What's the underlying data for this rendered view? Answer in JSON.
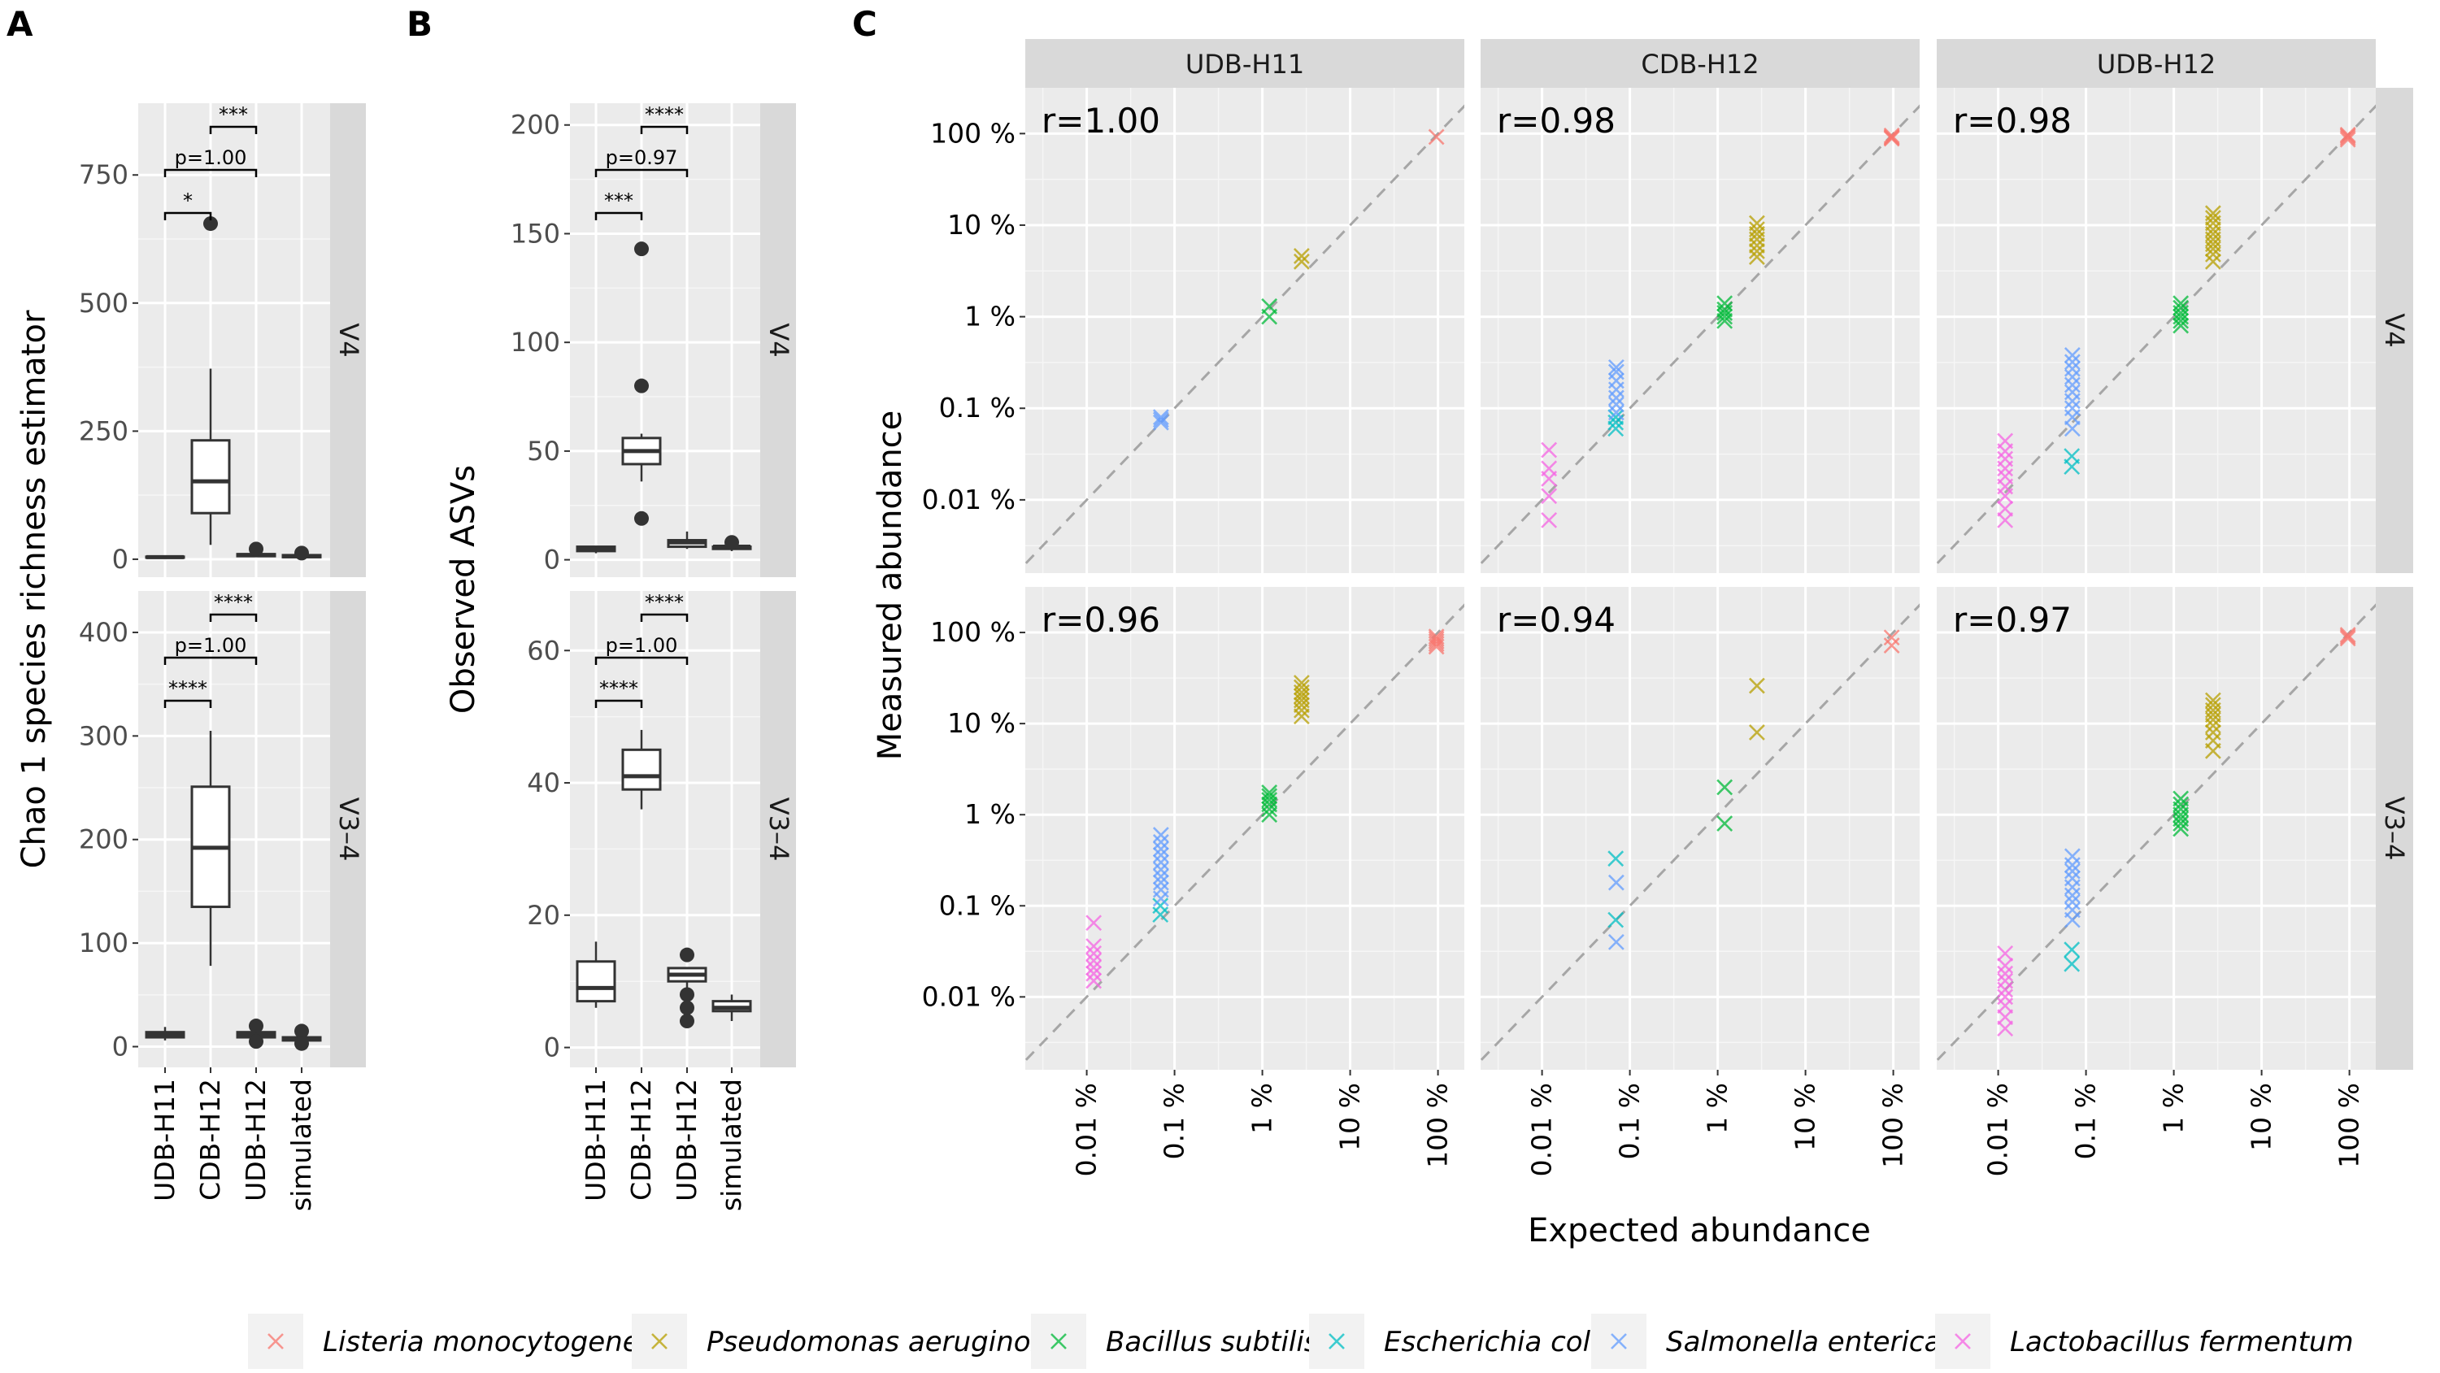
{
  "panel_letters": [
    "A",
    "B",
    "C"
  ],
  "legend": {
    "entries": [
      {
        "label": "Listeria monocytogenes",
        "color": "#F8766D"
      },
      {
        "label": "Pseudomonas aeruginosa",
        "color": "#B79F00"
      },
      {
        "label": "Bacillus subtilis",
        "color": "#00BA38"
      },
      {
        "label": "Escherichia coli",
        "color": "#00BFC4"
      },
      {
        "label": "Salmonella enterica",
        "color": "#619CFF"
      },
      {
        "label": "Lactobacillus fermentum",
        "color": "#F564E3"
      }
    ]
  },
  "chart_data": [
    {
      "id": "A",
      "type": "boxplot",
      "ylabel": "Chao 1 species richness estimator",
      "categories": [
        "UDB-H11",
        "CDB-H12",
        "UDB-H12",
        "simulated"
      ],
      "facets": [
        {
          "label": "V4",
          "ylim": [
            -35,
            890
          ],
          "yticks": [
            0,
            250,
            500,
            750
          ],
          "yticklabels": [
            "0",
            "250",
            "500",
            "750"
          ],
          "boxes": [
            {
              "min": 2,
              "q1": 3,
              "median": 4,
              "q3": 5,
              "max": 6,
              "outliers": []
            },
            {
              "min": 28,
              "q1": 90,
              "median": 152,
              "q3": 232,
              "max": 372,
              "outliers": [
                655
              ]
            },
            {
              "min": 4,
              "q1": 6,
              "median": 8,
              "q3": 10,
              "max": 14,
              "outliers": [
                20
              ]
            },
            {
              "min": 2,
              "q1": 4,
              "median": 6,
              "q3": 8,
              "max": 11,
              "outliers": [
                12
              ]
            }
          ],
          "brackets": [
            {
              "from": 1,
              "to": 2,
              "level": 1,
              "label": "*"
            },
            {
              "from": 1,
              "to": 3,
              "level": 2,
              "label": "p=1.00"
            },
            {
              "from": 2,
              "to": 3,
              "level": 3,
              "label": "***"
            }
          ]
        },
        {
          "label": "V3–4",
          "ylim": [
            -20,
            440
          ],
          "yticks": [
            0,
            100,
            200,
            300,
            400
          ],
          "yticklabels": [
            "0",
            "100",
            "200",
            "300",
            "400"
          ],
          "boxes": [
            {
              "min": 6,
              "q1": 9,
              "median": 11,
              "q3": 14,
              "max": 19,
              "outliers": []
            },
            {
              "min": 78,
              "q1": 135,
              "median": 192,
              "q3": 251,
              "max": 305,
              "outliers": []
            },
            {
              "min": 6,
              "q1": 9,
              "median": 11,
              "q3": 14,
              "max": 18,
              "outliers": [
                20,
                5
              ]
            },
            {
              "min": 4,
              "q1": 6,
              "median": 7,
              "q3": 9,
              "max": 12,
              "outliers": [
                15,
                3
              ]
            }
          ],
          "brackets": [
            {
              "from": 1,
              "to": 2,
              "level": 1,
              "label": "****"
            },
            {
              "from": 1,
              "to": 3,
              "level": 2,
              "label": "p=1.00"
            },
            {
              "from": 2,
              "to": 3,
              "level": 3,
              "label": "****"
            }
          ]
        }
      ]
    },
    {
      "id": "B",
      "type": "boxplot",
      "ylabel": "Observed ASVs",
      "categories": [
        "UDB-H11",
        "CDB-H12",
        "UDB-H12",
        "simulated"
      ],
      "facets": [
        {
          "label": "V4",
          "ylim": [
            -8,
            210
          ],
          "yticks": [
            0,
            50,
            100,
            150,
            200
          ],
          "yticklabels": [
            "0",
            "50",
            "100",
            "150",
            "200"
          ],
          "boxes": [
            {
              "min": 3,
              "q1": 4,
              "median": 5,
              "q3": 6,
              "max": 6,
              "outliers": []
            },
            {
              "min": 36,
              "q1": 44,
              "median": 50,
              "q3": 56,
              "max": 58,
              "outliers": [
                143,
                80,
                19
              ]
            },
            {
              "min": 5,
              "q1": 6,
              "median": 8,
              "q3": 9,
              "max": 13,
              "outliers": []
            },
            {
              "min": 4,
              "q1": 5,
              "median": 6,
              "q3": 6,
              "max": 7,
              "outliers": [
                8
              ]
            }
          ],
          "brackets": [
            {
              "from": 1,
              "to": 2,
              "level": 1,
              "label": "***"
            },
            {
              "from": 1,
              "to": 3,
              "level": 2,
              "label": "p=0.97"
            },
            {
              "from": 2,
              "to": 3,
              "level": 3,
              "label": "****"
            }
          ]
        },
        {
          "label": "V3–4",
          "ylim": [
            -3,
            69
          ],
          "yticks": [
            0,
            20,
            40,
            60
          ],
          "yticklabels": [
            "0",
            "20",
            "40",
            "60"
          ],
          "boxes": [
            {
              "min": 6,
              "q1": 7,
              "median": 9,
              "q3": 13,
              "max": 16,
              "outliers": []
            },
            {
              "min": 36,
              "q1": 39,
              "median": 41,
              "q3": 45,
              "max": 48,
              "outliers": []
            },
            {
              "min": 8,
              "q1": 10,
              "median": 11,
              "q3": 12,
              "max": 12,
              "outliers": [
                14,
                8,
                6,
                4
              ]
            },
            {
              "min": 4,
              "q1": 5.5,
              "median": 6,
              "q3": 7,
              "max": 8,
              "outliers": []
            }
          ],
          "brackets": [
            {
              "from": 1,
              "to": 2,
              "level": 1,
              "label": "****"
            },
            {
              "from": 1,
              "to": 3,
              "level": 2,
              "label": "p=1.00"
            },
            {
              "from": 2,
              "to": 3,
              "level": 3,
              "label": "****"
            }
          ]
        }
      ]
    },
    {
      "id": "C",
      "type": "scatter",
      "scale": "log10 percent",
      "xlabel": "Expected abundance",
      "ylabel": "Measured abundance",
      "xlim_log10": [
        -2.7,
        2.3
      ],
      "ylim_log10": [
        -2.8,
        2.5
      ],
      "xticks": [
        "0.01 %",
        "0.1 %",
        "1 %",
        "10 %",
        "100 %"
      ],
      "yticks": [
        "0.01 %",
        "0.1 %",
        "1 %",
        "10 %",
        "100 %"
      ],
      "columns": [
        "UDB-H11",
        "CDB-H12",
        "UDB-H12"
      ],
      "rows": [
        "V4",
        "V3–4"
      ],
      "expected_percent": {
        "Listeria monocytogenes": 95.9,
        "Pseudomonas aeruginosa": 2.8,
        "Bacillus subtilis": 1.2,
        "Escherichia coli": 0.069,
        "Salmonella enterica": 0.07,
        "Lactobacillus fermentum": 0.012
      },
      "facets": [
        {
          "row": "V4",
          "col": "UDB-H11",
          "annotation": "r=1.00",
          "points": [
            {
              "species": "Listeria monocytogenes",
              "y": [
                92
              ]
            },
            {
              "species": "Pseudomonas aeruginosa",
              "y": [
                4.0,
                4.6
              ]
            },
            {
              "species": "Bacillus subtilis",
              "y": [
                1.0,
                1.3
              ]
            },
            {
              "species": "Salmonella enterica",
              "y": [
                0.07,
                0.075,
                0.08
              ]
            }
          ]
        },
        {
          "row": "V4",
          "col": "CDB-H12",
          "annotation": "r=0.98",
          "points": [
            {
              "species": "Listeria monocytogenes",
              "y": [
                88,
                90,
                92,
                95
              ]
            },
            {
              "species": "Pseudomonas aeruginosa",
              "y": [
                4.5,
                5.2,
                6.0,
                7.0,
                8.0,
                9.0,
                10.5
              ]
            },
            {
              "species": "Bacillus subtilis",
              "y": [
                0.9,
                1.0,
                1.1,
                1.2,
                1.4
              ]
            },
            {
              "species": "Escherichia coli",
              "y": [
                0.06,
                0.07,
                0.08
              ]
            },
            {
              "species": "Salmonella enterica",
              "y": [
                0.09,
                0.11,
                0.13,
                0.16,
                0.2,
                0.25,
                0.28
              ]
            },
            {
              "species": "Lactobacillus fermentum",
              "y": [
                0.006,
                0.011,
                0.017,
                0.022,
                0.035
              ]
            }
          ]
        },
        {
          "row": "V4",
          "col": "UDB-H12",
          "annotation": "r=0.98",
          "points": [
            {
              "species": "Listeria monocytogenes",
              "y": [
                86,
                90,
                94,
                97
              ]
            },
            {
              "species": "Pseudomonas aeruginosa",
              "y": [
                4.0,
                4.8,
                5.5,
                6.2,
                7.0,
                8.0,
                9.0,
                10.5,
                12.0,
                13.5
              ]
            },
            {
              "species": "Bacillus subtilis",
              "y": [
                0.8,
                0.9,
                1.0,
                1.1,
                1.25,
                1.4
              ]
            },
            {
              "species": "Escherichia coli",
              "y": [
                0.023,
                0.03
              ]
            },
            {
              "species": "Salmonella enterica",
              "y": [
                0.06,
                0.08,
                0.1,
                0.12,
                0.15,
                0.18,
                0.22,
                0.27,
                0.32,
                0.38
              ]
            },
            {
              "species": "Lactobacillus fermentum",
              "y": [
                0.006,
                0.008,
                0.011,
                0.014,
                0.018,
                0.022,
                0.028,
                0.034,
                0.044
              ]
            }
          ]
        },
        {
          "row": "V3–4",
          "col": "UDB-H11",
          "annotation": "r=0.96",
          "points": [
            {
              "species": "Listeria monocytogenes",
              "y": [
                70,
                75,
                80,
                85,
                90
              ]
            },
            {
              "species": "Pseudomonas aeruginosa",
              "y": [
                12,
                14,
                16,
                18,
                20,
                22,
                25,
                28
              ]
            },
            {
              "species": "Bacillus subtilis",
              "y": [
                1.0,
                1.15,
                1.3,
                1.45,
                1.6,
                1.75
              ]
            },
            {
              "species": "Escherichia coli",
              "y": [
                0.08,
                0.1
              ]
            },
            {
              "species": "Salmonella enterica",
              "y": [
                0.12,
                0.15,
                0.18,
                0.21,
                0.25,
                0.3,
                0.36,
                0.42,
                0.5,
                0.6
              ]
            },
            {
              "species": "Lactobacillus fermentum",
              "y": [
                0.015,
                0.018,
                0.021,
                0.025,
                0.03,
                0.036,
                0.065
              ]
            }
          ]
        },
        {
          "row": "V3–4",
          "col": "CDB-H12",
          "annotation": "r=0.94",
          "points": [
            {
              "species": "Listeria monocytogenes",
              "y": [
                72,
                88
              ]
            },
            {
              "species": "Pseudomonas aeruginosa",
              "y": [
                8,
                26
              ]
            },
            {
              "species": "Bacillus subtilis",
              "y": [
                0.8,
                2.0
              ]
            },
            {
              "species": "Escherichia coli",
              "y": [
                0.07,
                0.33
              ]
            },
            {
              "species": "Salmonella enterica",
              "y": [
                0.04,
                0.18
              ]
            }
          ]
        },
        {
          "row": "V3–4",
          "col": "UDB-H12",
          "annotation": "r=0.97",
          "points": [
            {
              "species": "Listeria monocytogenes",
              "y": [
                86,
                90,
                94
              ]
            },
            {
              "species": "Pseudomonas aeruginosa",
              "y": [
                5,
                6.5,
                8,
                9.5,
                11,
                12.5,
                14,
                16,
                18
              ]
            },
            {
              "species": "Bacillus subtilis",
              "y": [
                0.7,
                0.8,
                0.9,
                1.0,
                1.15,
                1.3,
                1.5
              ]
            },
            {
              "species": "Escherichia coli",
              "y": [
                0.023,
                0.033
              ]
            },
            {
              "species": "Salmonella enterica",
              "y": [
                0.07,
                0.09,
                0.11,
                0.13,
                0.16,
                0.2,
                0.24,
                0.28,
                0.35
              ]
            },
            {
              "species": "Lactobacillus fermentum",
              "y": [
                0.0045,
                0.006,
                0.008,
                0.01,
                0.012,
                0.015,
                0.018,
                0.022,
                0.03
              ]
            }
          ]
        }
      ]
    }
  ]
}
